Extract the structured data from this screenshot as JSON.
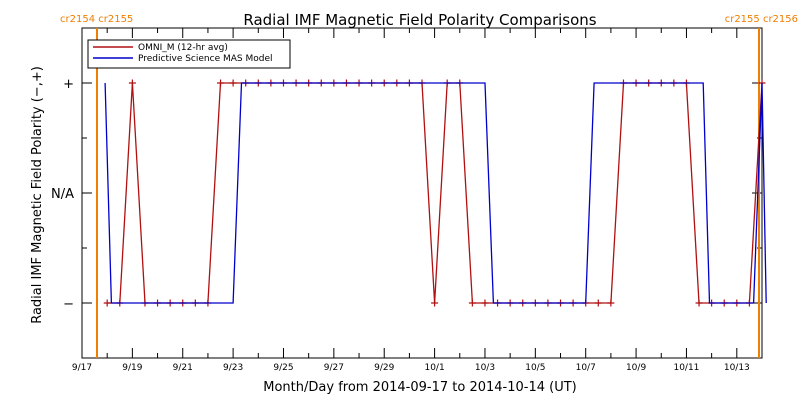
{
  "chart_data": {
    "type": "line",
    "title": "Radial IMF Magnetic Field Polarity Comparisons",
    "xlabel": "Month/Day from 2014-09-17 to 2014-10-14 (UT)",
    "ylabel": "Radial IMF Magnetic Field Polarity (−,+)",
    "xlim": [
      "2014-09-17",
      "2014-10-14"
    ],
    "ylim": [
      -1.5,
      1.5
    ],
    "x_ticks": [
      "9/17",
      "9/19",
      "9/21",
      "9/23",
      "9/25",
      "9/27",
      "9/29",
      "10/1",
      "10/3",
      "10/5",
      "10/7",
      "10/9",
      "10/11",
      "10/13"
    ],
    "y_ticks": [
      {
        "value": 1,
        "label": "+"
      },
      {
        "value": 0,
        "label": "N/A"
      },
      {
        "value": -1,
        "label": "−"
      }
    ],
    "grid": false,
    "legend_position": "top-left",
    "rotation_markers": [
      {
        "date": "2014-09-18",
        "label": "cr2154 cr2155",
        "side": "left",
        "color": "#f07e00"
      },
      {
        "date": "2014-10-14",
        "label": "cr2155 cr2156",
        "side": "right",
        "color": "#f07e00"
      }
    ],
    "series": [
      {
        "name": "OMNI_M (12-hr avg)",
        "color": "#b01010",
        "markers": true,
        "x": [
          "2014-09-18T00:00",
          "2014-09-18T12:00",
          "2014-09-19T00:00",
          "2014-09-19T12:00",
          "2014-09-20T00:00",
          "2014-09-20T12:00",
          "2014-09-21T00:00",
          "2014-09-21T12:00",
          "2014-09-22T00:00",
          "2014-09-22T12:00",
          "2014-09-23T00:00",
          "2014-09-23T12:00",
          "2014-09-24T00:00",
          "2014-09-24T12:00",
          "2014-09-25T00:00",
          "2014-09-25T12:00",
          "2014-09-26T00:00",
          "2014-09-26T12:00",
          "2014-09-27T00:00",
          "2014-09-27T12:00",
          "2014-09-28T00:00",
          "2014-09-28T12:00",
          "2014-09-29T00:00",
          "2014-09-29T12:00",
          "2014-09-30T00:00",
          "2014-09-30T12:00",
          "2014-10-01T00:00",
          "2014-10-01T12:00",
          "2014-10-02T00:00",
          "2014-10-02T12:00",
          "2014-10-03T00:00",
          "2014-10-03T12:00",
          "2014-10-04T00:00",
          "2014-10-04T12:00",
          "2014-10-05T00:00",
          "2014-10-05T12:00",
          "2014-10-06T00:00",
          "2014-10-06T12:00",
          "2014-10-07T00:00",
          "2014-10-07T12:00",
          "2014-10-08T00:00",
          "2014-10-08T12:00",
          "2014-10-09T00:00",
          "2014-10-09T12:00",
          "2014-10-10T00:00",
          "2014-10-10T12:00",
          "2014-10-11T00:00",
          "2014-10-11T12:00",
          "2014-10-12T00:00",
          "2014-10-12T12:00",
          "2014-10-13T00:00",
          "2014-10-13T12:00",
          "2014-10-14T00:00"
        ],
        "y": [
          -1,
          -1,
          1,
          -1,
          -1,
          -1,
          -1,
          -1,
          -1,
          1,
          1,
          1,
          1,
          1,
          1,
          1,
          1,
          1,
          1,
          1,
          1,
          1,
          1,
          1,
          1,
          1,
          -1,
          1,
          1,
          -1,
          -1,
          -1,
          -1,
          -1,
          -1,
          -1,
          -1,
          -1,
          -1,
          -1,
          -1,
          1,
          1,
          1,
          1,
          1,
          1,
          -1,
          -1,
          -1,
          -1,
          -1,
          1
        ]
      },
      {
        "name": "Predictive Science MAS Model",
        "color": "#0000cc",
        "markers": false,
        "x": [
          "2014-09-17T22:00",
          "2014-09-18T04:00",
          "2014-09-23T00:00",
          "2014-09-23T08:00",
          "2014-10-03T00:00",
          "2014-10-03T08:00",
          "2014-10-07T00:00",
          "2014-10-07T08:00",
          "2014-10-11T16:00",
          "2014-10-11T22:00",
          "2014-10-13T16:00",
          "2014-10-14T00:00",
          "2014-10-14T04:00"
        ],
        "y": [
          1,
          -1,
          -1,
          1,
          1,
          -1,
          -1,
          1,
          1,
          -1,
          -1,
          1,
          -1
        ]
      }
    ]
  }
}
